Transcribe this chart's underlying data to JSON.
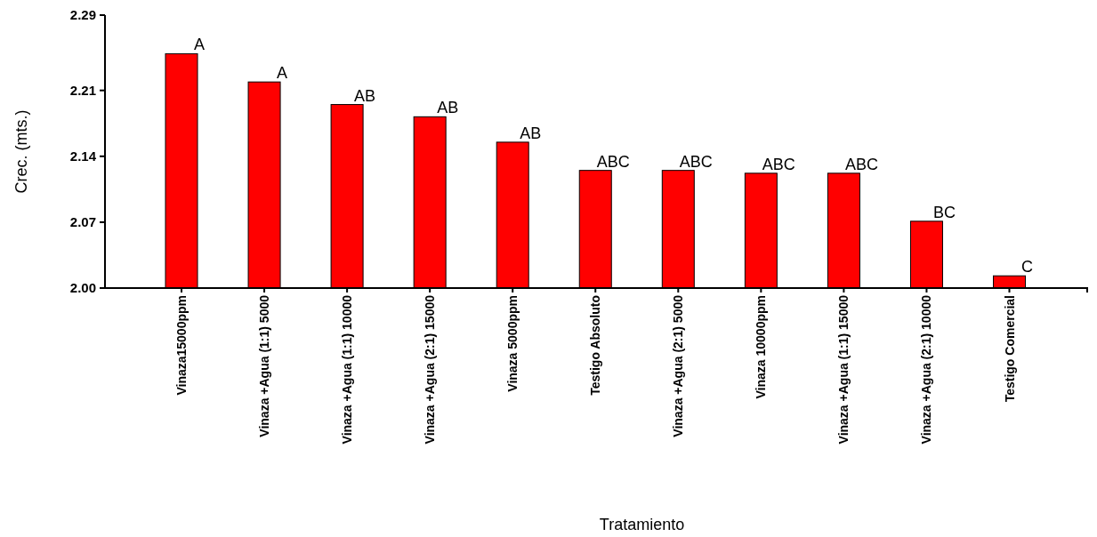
{
  "chart_data": {
    "type": "bar",
    "xlabel": "Tratamiento",
    "ylabel": "Crec. (mts.)",
    "categories": [
      "Vinaza15000ppm",
      "Vinaza +Agua (1:1) 5000",
      "Vinaza +Agua (1:1) 10000",
      "Vinaza +Agua (2:1) 15000",
      "Vinaza 5000ppm",
      "Testigo Absoluto",
      "Vinaza +Agua (2:1) 5000",
      "Vinaza 10000ppm",
      "Vinaza +Agua (1:1) 15000",
      "Vinaza +Agua (2:1) 10000",
      "Testigo Comercial"
    ],
    "values": [
      2.249,
      2.219,
      2.195,
      2.182,
      2.155,
      2.125,
      2.125,
      2.122,
      2.122,
      2.071,
      2.013
    ],
    "value_labels": [
      "A",
      "A",
      "AB",
      "AB",
      "AB",
      "ABC",
      "ABC",
      "ABC",
      "ABC",
      "BC",
      "C"
    ],
    "color": "#ff0000",
    "ylim": [
      2.0,
      2.29
    ],
    "yticks": [
      {
        "value": 2.0,
        "label": "2.00"
      },
      {
        "value": 2.07,
        "label": "2.07"
      },
      {
        "value": 2.14,
        "label": "2.14"
      },
      {
        "value": 2.21,
        "label": "2.21"
      },
      {
        "value": 2.29,
        "label": "2.29"
      }
    ],
    "grid": false
  }
}
